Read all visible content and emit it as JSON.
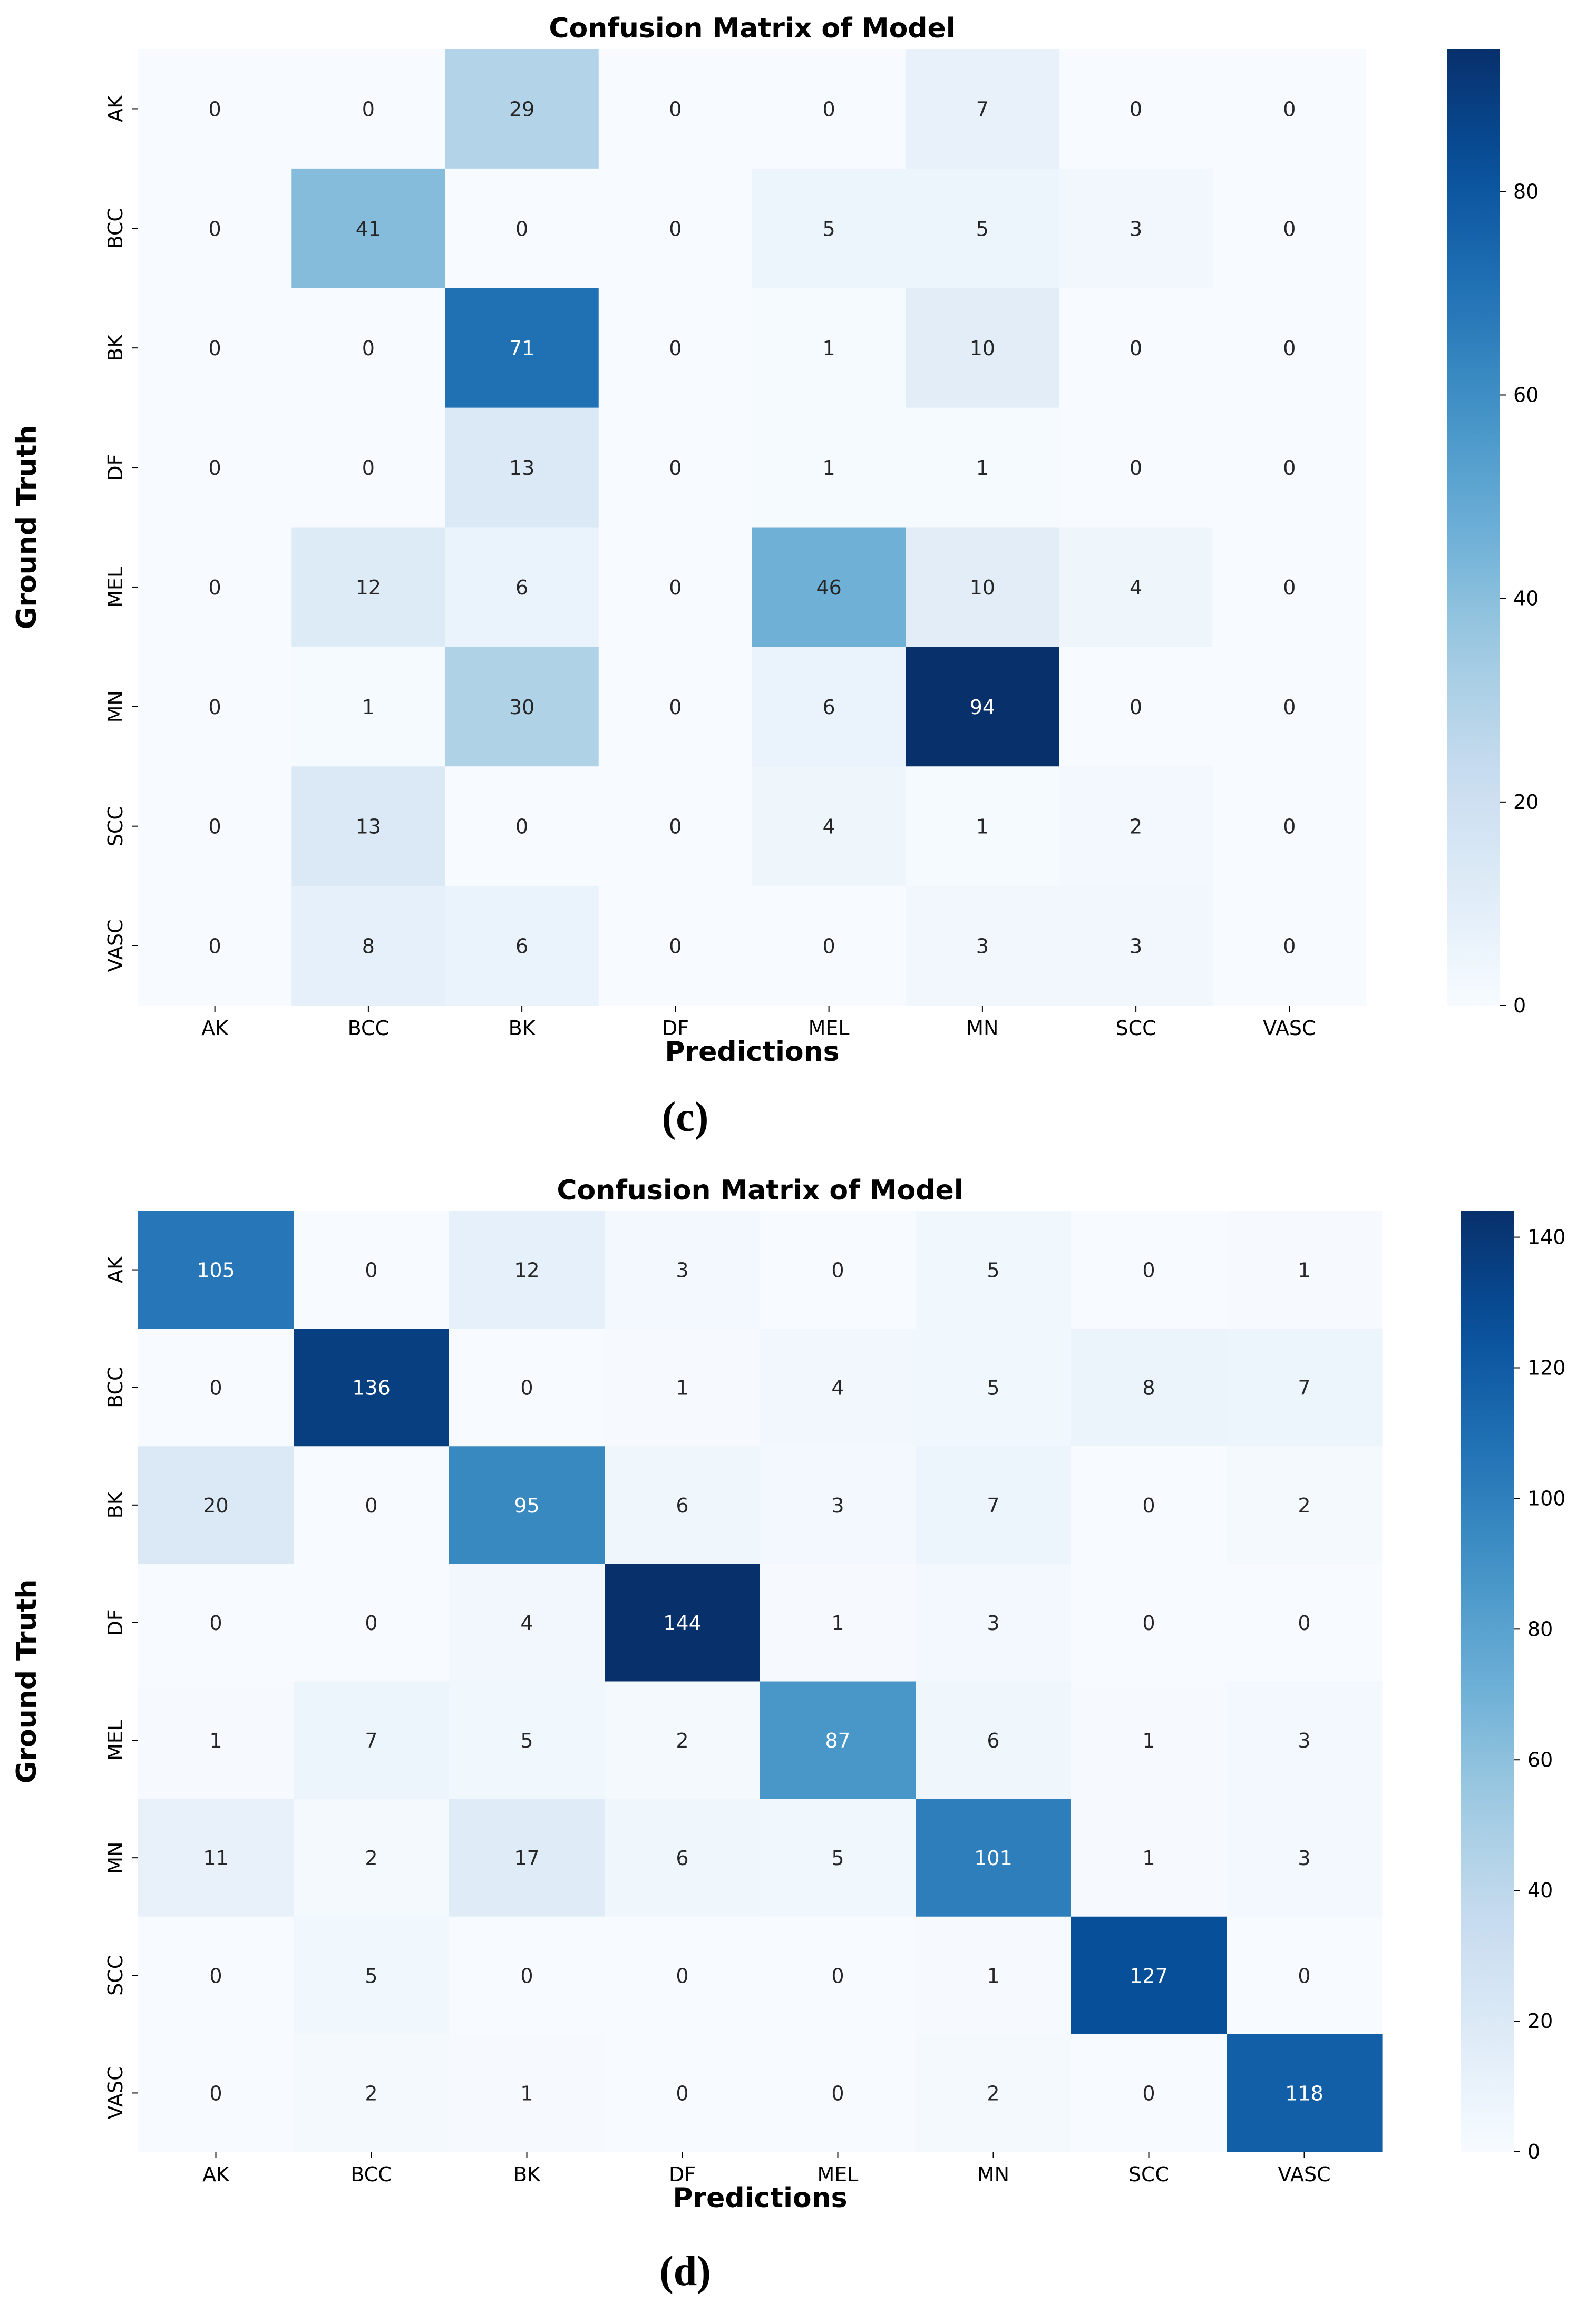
{
  "figures": [
    {
      "label": "(c)"
    },
    {
      "label": "(d)"
    }
  ],
  "chart_data": [
    {
      "type": "heatmap",
      "title": "Confusion Matrix of Model",
      "xlabel": "Predictions",
      "ylabel": "Ground Truth",
      "x_categories": [
        "AK",
        "BCC",
        "BK",
        "DF",
        "MEL",
        "MN",
        "SCC",
        "VASC"
      ],
      "y_categories": [
        "AK",
        "BCC",
        "BK",
        "DF",
        "MEL",
        "MN",
        "SCC",
        "VASC"
      ],
      "values": [
        [
          0,
          0,
          29,
          0,
          0,
          7,
          0,
          0
        ],
        [
          0,
          41,
          0,
          0,
          5,
          5,
          3,
          0
        ],
        [
          0,
          0,
          71,
          0,
          1,
          10,
          0,
          0
        ],
        [
          0,
          0,
          13,
          0,
          1,
          1,
          0,
          0
        ],
        [
          0,
          12,
          6,
          0,
          46,
          10,
          4,
          0
        ],
        [
          0,
          1,
          30,
          0,
          6,
          94,
          0,
          0
        ],
        [
          0,
          13,
          0,
          0,
          4,
          1,
          2,
          0
        ],
        [
          0,
          8,
          6,
          0,
          0,
          3,
          3,
          0
        ]
      ],
      "colorbar": {
        "min": 0,
        "max": 94,
        "ticks": [
          0,
          20,
          40,
          60,
          80
        ],
        "colormap": "Blues"
      },
      "grid": false,
      "legend": "colorbar-right"
    },
    {
      "type": "heatmap",
      "title": "Confusion Matrix of Model",
      "xlabel": "Predictions",
      "ylabel": "Ground Truth",
      "x_categories": [
        "AK",
        "BCC",
        "BK",
        "DF",
        "MEL",
        "MN",
        "SCC",
        "VASC"
      ],
      "y_categories": [
        "AK",
        "BCC",
        "BK",
        "DF",
        "MEL",
        "MN",
        "SCC",
        "VASC"
      ],
      "values": [
        [
          105,
          0,
          12,
          3,
          0,
          5,
          0,
          1
        ],
        [
          0,
          136,
          0,
          1,
          4,
          5,
          8,
          7
        ],
        [
          20,
          0,
          95,
          6,
          3,
          7,
          0,
          2
        ],
        [
          0,
          0,
          4,
          144,
          1,
          3,
          0,
          0
        ],
        [
          1,
          7,
          5,
          2,
          87,
          6,
          1,
          3
        ],
        [
          11,
          2,
          17,
          6,
          5,
          101,
          1,
          3
        ],
        [
          0,
          5,
          0,
          0,
          0,
          1,
          127,
          0
        ],
        [
          0,
          2,
          1,
          0,
          0,
          2,
          0,
          118
        ]
      ],
      "colorbar": {
        "min": 0,
        "max": 144,
        "ticks": [
          0,
          20,
          40,
          60,
          80,
          100,
          120,
          140
        ],
        "colormap": "Blues"
      },
      "grid": false,
      "legend": "colorbar-right"
    }
  ]
}
